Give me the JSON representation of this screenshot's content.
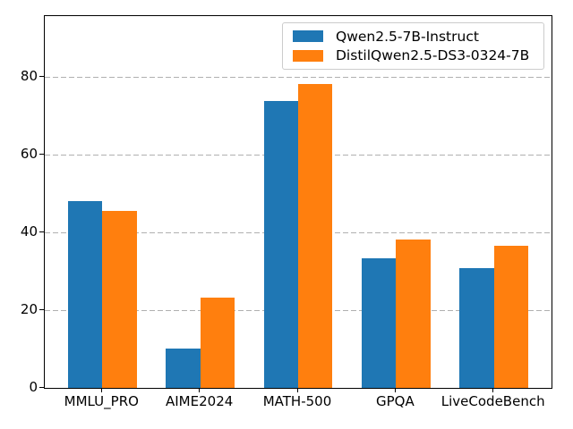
{
  "chart_data": {
    "type": "bar",
    "title": "",
    "xlabel": "",
    "ylabel": "",
    "categories": [
      "MMLU_PRO",
      "AIME2024",
      "MATH-500",
      "GPQA",
      "LiveCodeBench"
    ],
    "series": [
      {
        "name": "Qwen2.5-7B-Instruct",
        "color": "#1f77b4",
        "values": [
          48.0,
          10.0,
          73.6,
          33.3,
          30.7
        ]
      },
      {
        "name": "DistilQwen2.5-DS3-0324-7B",
        "color": "#ff7f0e",
        "values": [
          45.5,
          23.3,
          78.1,
          38.0,
          36.4
        ]
      }
    ],
    "ylim": [
      0,
      95.5
    ],
    "yticks": [
      0,
      20,
      40,
      60,
      80
    ],
    "grid": true,
    "grid_style": "dashed",
    "grid_color": "#b0b0b0",
    "legend_position": "upper right",
    "bar_width_fraction": 0.35,
    "axis_color": "#000000",
    "background_color": "#ffffff"
  }
}
